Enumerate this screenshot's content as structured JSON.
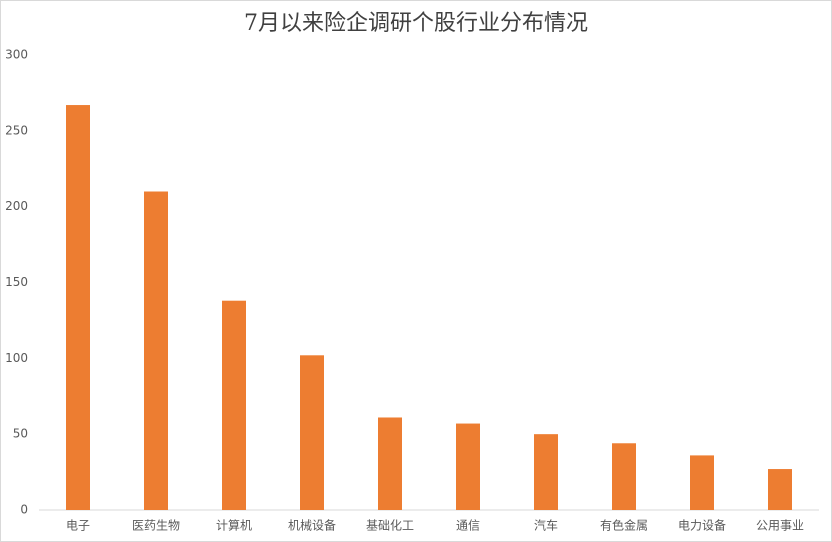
{
  "chart_data": {
    "type": "bar",
    "title": "7月以来险企调研个股行业分布情况",
    "categories": [
      "电子",
      "医药生物",
      "计算机",
      "机械设备",
      "基础化工",
      "通信",
      "汽车",
      "有色金属",
      "电力设备",
      "公用事业"
    ],
    "values": [
      267,
      210,
      138,
      102,
      61,
      57,
      50,
      44,
      36,
      27
    ],
    "color": "#ed7d31",
    "ylim": [
      0,
      300
    ],
    "yticks": [
      0,
      50,
      100,
      150,
      200,
      250,
      300
    ],
    "grid": false
  }
}
